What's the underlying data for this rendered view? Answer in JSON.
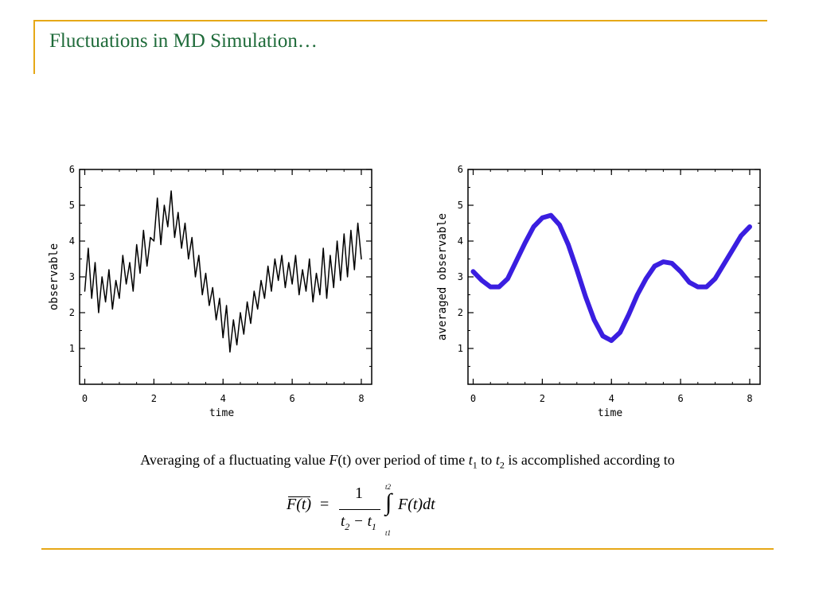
{
  "slide": {
    "title": "Fluctuations in MD Simulation…",
    "accent_color": "#e6a817",
    "title_color": "#1f6b3a"
  },
  "chart_data": [
    {
      "type": "line",
      "xlabel": "time",
      "ylabel": "observable",
      "xlim": [
        -0.15,
        8.3
      ],
      "ylim": [
        0,
        6
      ],
      "xticks": [
        0,
        2,
        4,
        6,
        8
      ],
      "yticks": [
        1,
        2,
        3,
        4,
        5,
        6
      ],
      "line_color": "#000000",
      "series": [
        {
          "x": [
            0,
            0.1,
            0.2,
            0.3,
            0.4,
            0.5,
            0.6,
            0.7,
            0.8,
            0.9,
            1.0,
            1.1,
            1.2,
            1.3,
            1.4,
            1.5,
            1.6,
            1.7,
            1.8,
            1.9,
            2.0,
            2.1,
            2.2,
            2.3,
            2.4,
            2.5,
            2.6,
            2.7,
            2.8,
            2.9,
            3.0,
            3.1,
            3.2,
            3.3,
            3.4,
            3.5,
            3.6,
            3.7,
            3.8,
            3.9,
            4.0,
            4.1,
            4.2,
            4.3,
            4.4,
            4.5,
            4.6,
            4.7,
            4.8,
            4.9,
            5.0,
            5.1,
            5.2,
            5.3,
            5.4,
            5.5,
            5.6,
            5.7,
            5.8,
            5.9,
            6.0,
            6.1,
            6.2,
            6.3,
            6.4,
            6.5,
            6.6,
            6.7,
            6.8,
            6.9,
            7.0,
            7.1,
            7.2,
            7.3,
            7.4,
            7.5,
            7.6,
            7.7,
            7.8,
            7.9,
            8.0
          ],
          "y": [
            2.6,
            3.8,
            2.4,
            3.4,
            2.0,
            3.0,
            2.3,
            3.2,
            2.1,
            2.9,
            2.4,
            3.6,
            2.8,
            3.4,
            2.6,
            3.9,
            3.1,
            4.3,
            3.3,
            4.1,
            4.0,
            5.2,
            3.9,
            5.0,
            4.4,
            5.4,
            4.1,
            4.8,
            3.8,
            4.5,
            3.5,
            4.1,
            3.0,
            3.6,
            2.5,
            3.1,
            2.2,
            2.7,
            1.8,
            2.4,
            1.3,
            2.2,
            0.9,
            1.8,
            1.1,
            2.0,
            1.4,
            2.3,
            1.7,
            2.6,
            2.1,
            2.9,
            2.4,
            3.3,
            2.6,
            3.5,
            2.9,
            3.6,
            2.7,
            3.4,
            2.8,
            3.6,
            2.5,
            3.2,
            2.6,
            3.5,
            2.3,
            3.1,
            2.5,
            3.8,
            2.4,
            3.6,
            2.7,
            4.0,
            2.9,
            4.2,
            3.0,
            4.3,
            3.2,
            4.5,
            3.5
          ]
        }
      ]
    },
    {
      "type": "line",
      "xlabel": "time",
      "ylabel": "averaged observable",
      "xlim": [
        -0.15,
        8.3
      ],
      "ylim": [
        0,
        6
      ],
      "xticks": [
        0,
        2,
        4,
        6,
        8
      ],
      "yticks": [
        1,
        2,
        3,
        4,
        5,
        6
      ],
      "line_color": "#3a1ee0",
      "series": [
        {
          "x": [
            0,
            0.25,
            0.5,
            0.75,
            1.0,
            1.25,
            1.5,
            1.75,
            2.0,
            2.25,
            2.5,
            2.75,
            3.0,
            3.25,
            3.5,
            3.75,
            4.0,
            4.25,
            4.5,
            4.75,
            5.0,
            5.25,
            5.5,
            5.75,
            6.0,
            6.25,
            6.5,
            6.75,
            7.0,
            7.25,
            7.5,
            7.75,
            8.0
          ],
          "y": [
            3.15,
            2.9,
            2.72,
            2.72,
            2.95,
            3.45,
            3.95,
            4.4,
            4.65,
            4.72,
            4.45,
            3.9,
            3.2,
            2.45,
            1.8,
            1.35,
            1.22,
            1.45,
            1.95,
            2.5,
            2.95,
            3.3,
            3.42,
            3.38,
            3.15,
            2.85,
            2.72,
            2.72,
            2.95,
            3.35,
            3.75,
            4.15,
            4.4
          ]
        }
      ]
    }
  ],
  "caption": {
    "text_1": "Averaging of a fluctuating value ",
    "F": "F",
    "paren_t": "(t)",
    "text_2": " over period of time ",
    "t": "t",
    "sub1": "1",
    "text_3": " to ",
    "sub2": "2",
    "text_4": " is accomplished according to"
  },
  "equation": {
    "lhs": "F(t)",
    "equals": "=",
    "numerator": "1",
    "denominator_t": "t",
    "denominator_sub2": "2",
    "minus": " − ",
    "denominator_sub1": "1",
    "integral": "∫",
    "upper_limit": "t2",
    "lower_limit": "t1",
    "integrand": "F(t)dt"
  }
}
